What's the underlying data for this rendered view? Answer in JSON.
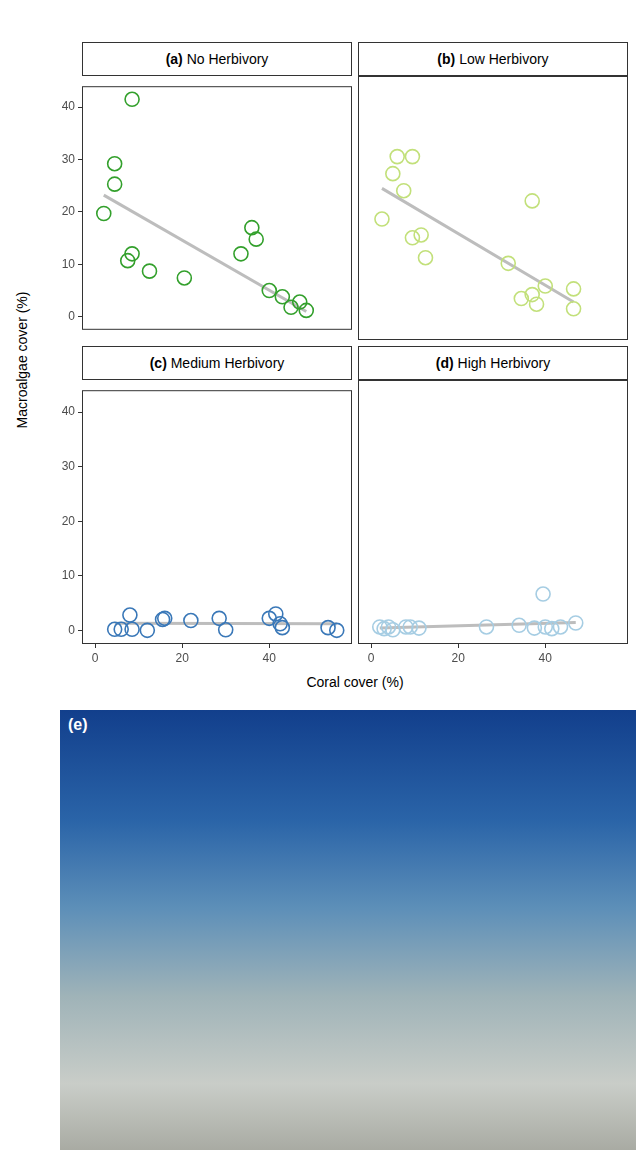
{
  "figure": {
    "x_label": "Coral cover (%)",
    "y_label": "Macroalgae cover (%)",
    "image_panel": {
      "label": "(e)"
    }
  },
  "chart_data": [
    {
      "type": "scatter",
      "label": "(a)",
      "title": "No Herbivory",
      "color": "#33a02c",
      "marker": "circle",
      "grid": false,
      "tick_labels": "y",
      "xlim": [
        -3,
        59
      ],
      "xticks": [
        0,
        20,
        40
      ],
      "ylim": [
        -2.5,
        44
      ],
      "yticks": [
        0,
        10,
        20,
        30,
        40
      ],
      "x": [
        2,
        4.5,
        4.5,
        8.5,
        7.5,
        8.5,
        12.5,
        20.5,
        33.5,
        36,
        37,
        40,
        43,
        45,
        47,
        48.5
      ],
      "values": [
        19.7,
        29.2,
        25.3,
        41.5,
        10.7,
        12,
        8.7,
        7.4,
        12,
        17,
        14.8,
        5,
        3.8,
        1.8,
        2.8,
        1.2
      ],
      "fit": {
        "x": [
          2,
          48.5
        ],
        "values": [
          23.2,
          1.0
        ],
        "color": "#bdbdbd",
        "line_style": "solid"
      }
    },
    {
      "type": "scatter",
      "label": "(b)",
      "title": "Low Herbivory",
      "color": "#c2e07a",
      "marker": "circle",
      "grid": false,
      "tick_labels": false,
      "xlim": [
        -3,
        59
      ],
      "xticks": [
        0,
        20,
        40
      ],
      "ylim": [
        -2.5,
        44
      ],
      "yticks": [
        0,
        10,
        20,
        30,
        40
      ],
      "x": [
        2.5,
        5,
        6,
        7.5,
        9.5,
        9.5,
        11.5,
        12.5,
        31.5,
        34.5,
        37,
        37,
        38,
        40,
        46.5,
        46.5
      ],
      "values": [
        18.8,
        26.8,
        29.8,
        23.8,
        29.8,
        15.5,
        16,
        12,
        11,
        4.8,
        22,
        5.5,
        3.8,
        7,
        6.5,
        3
      ],
      "fit": {
        "x": [
          2.5,
          46.5
        ],
        "values": [
          24.2,
          4.2
        ],
        "color": "#bdbdbd",
        "line_style": "solid"
      }
    },
    {
      "type": "scatter",
      "label": "(c)",
      "title": "Medium Herbivory",
      "color": "#3a78b8",
      "marker": "circle",
      "grid": false,
      "tick_labels": true,
      "xlim": [
        -3,
        59
      ],
      "xticks": [
        0,
        20,
        40
      ],
      "ylim": [
        -2.5,
        44
      ],
      "yticks": [
        0,
        10,
        20,
        30,
        40
      ],
      "x": [
        4.5,
        6,
        8,
        8.5,
        12,
        15.5,
        16,
        22,
        28.5,
        30,
        40,
        41.5,
        42.5,
        43,
        53.5,
        55.5
      ],
      "values": [
        0.2,
        0.2,
        2.8,
        0.2,
        0,
        2,
        2.2,
        1.8,
        2.2,
        0.1,
        2.2,
        3,
        1.2,
        0.5,
        0.5,
        0
      ],
      "fit": {
        "x": [
          4.5,
          55.5
        ],
        "values": [
          1.3,
          1.2
        ],
        "color": "#bdbdbd",
        "line_style": "solid"
      }
    },
    {
      "type": "scatter",
      "label": "(d)",
      "title": "High Herbivory",
      "color": "#a6cde3",
      "marker": "circle",
      "grid": false,
      "tick_labels": "x",
      "xlim": [
        -3,
        59
      ],
      "xticks": [
        0,
        20,
        40
      ],
      "ylim": [
        -2.5,
        44
      ],
      "yticks": [
        0,
        10,
        20,
        30,
        40
      ],
      "x": [
        2,
        3,
        4,
        5,
        8,
        9,
        11,
        26.5,
        34,
        37.5,
        39.5,
        40,
        41.5,
        43.5,
        47
      ],
      "values": [
        0.5,
        0.2,
        0.5,
        0,
        0.5,
        0.5,
        0.3,
        0.5,
        0.8,
        0.3,
        6.3,
        0.5,
        0.2,
        0.5,
        1.2
      ],
      "fit": {
        "x": [
          2,
          47
        ],
        "values": [
          0.3,
          1.3
        ],
        "color": "#bdbdbd",
        "line_style": "solid"
      }
    }
  ]
}
